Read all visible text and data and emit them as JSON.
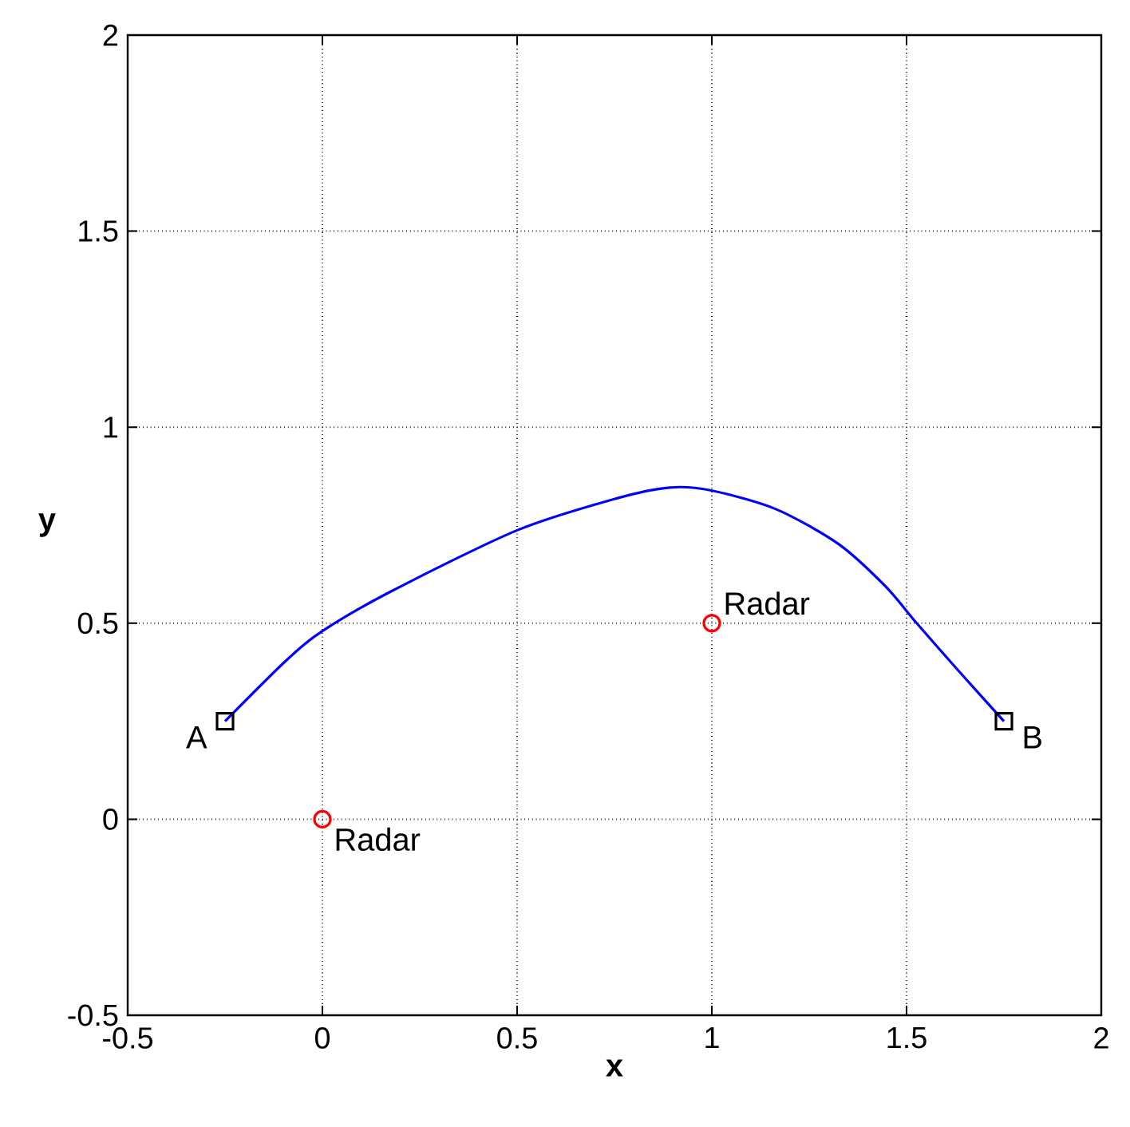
{
  "chart_data": {
    "type": "line",
    "xlabel": "x",
    "ylabel": "y",
    "xlim": [
      -0.5,
      2
    ],
    "ylim": [
      -0.5,
      2
    ],
    "xticks": [
      -0.5,
      0,
      0.5,
      1,
      1.5,
      2
    ],
    "yticks": [
      -0.5,
      0,
      0.5,
      1,
      1.5,
      2
    ],
    "grid": true,
    "series": [
      {
        "color": "#0000ff",
        "marker": "none",
        "line_style": "solid",
        "x": [
          -0.25,
          -0.093,
          0,
          0.176,
          0.5,
          0.754,
          0.892,
          0.996,
          1.162,
          1.324,
          1.445,
          1.526,
          1.634,
          1.75
        ],
        "values": [
          0.25,
          0.405,
          0.48,
          0.581,
          0.737,
          0.818,
          0.846,
          0.839,
          0.792,
          0.703,
          0.595,
          0.5,
          0.378,
          0.25
        ]
      },
      {
        "type": "scatter",
        "color": "#000000",
        "marker": "square",
        "x": [
          -0.25,
          1.75
        ],
        "values": [
          0.25,
          0.25
        ]
      },
      {
        "type": "scatter",
        "color": "#ff0000",
        "marker": "circle",
        "x": [
          0,
          1
        ],
        "values": [
          0,
          0.5
        ]
      }
    ],
    "annotations": [
      {
        "text": "A",
        "x": -0.25,
        "y": 0.25
      },
      {
        "text": "B",
        "x": 1.75,
        "y": 0.25
      },
      {
        "text": "Radar",
        "x": 0,
        "y": 0
      },
      {
        "text": "Radar",
        "x": 1,
        "y": 0.5
      }
    ]
  }
}
